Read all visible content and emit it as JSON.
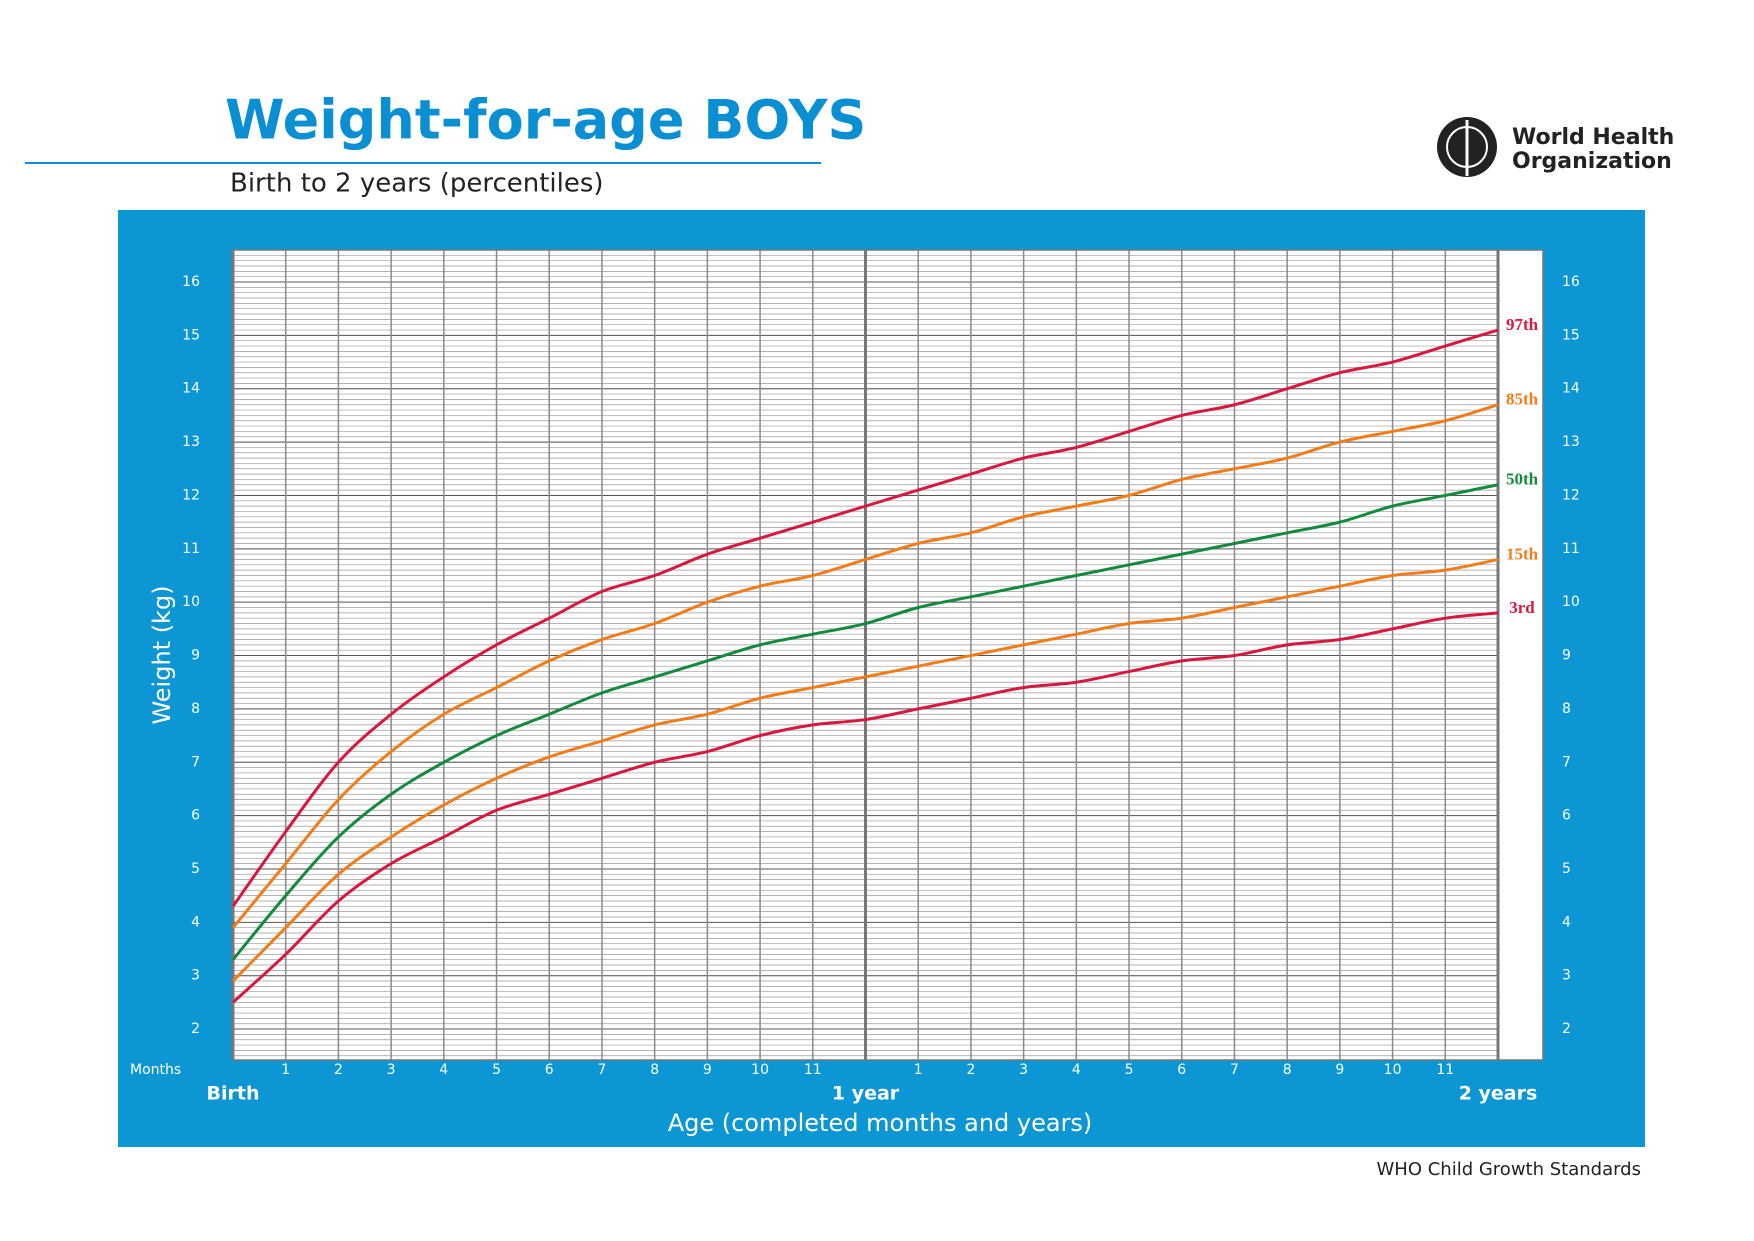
{
  "header": {
    "title": "Weight-for-age BOYS",
    "subtitle": "Birth to 2 years (percentiles)",
    "logo_lines": [
      "World Health",
      "Organization"
    ]
  },
  "footer": "WHO Child Growth Standards",
  "chart_data": {
    "type": "line",
    "ylabel": "Weight (kg)",
    "xlabel": "Age (completed months and years)",
    "x_unit_label": "Months",
    "x": [
      0,
      1,
      2,
      3,
      4,
      5,
      6,
      7,
      8,
      9,
      10,
      11,
      12,
      13,
      14,
      15,
      16,
      17,
      18,
      19,
      20,
      21,
      22,
      23,
      24
    ],
    "series": [
      {
        "name": "97th",
        "color": "#d7183f",
        "values": [
          4.3,
          5.7,
          7.0,
          7.9,
          8.6,
          9.2,
          9.7,
          10.2,
          10.5,
          10.9,
          11.2,
          11.5,
          11.8,
          12.1,
          12.4,
          12.7,
          12.9,
          13.2,
          13.5,
          13.7,
          14.0,
          14.3,
          14.5,
          14.8,
          15.1
        ]
      },
      {
        "name": "85th",
        "color": "#f07d1a",
        "values": [
          3.9,
          5.1,
          6.3,
          7.2,
          7.9,
          8.4,
          8.9,
          9.3,
          9.6,
          10.0,
          10.3,
          10.5,
          10.8,
          11.1,
          11.3,
          11.6,
          11.8,
          12.0,
          12.3,
          12.5,
          12.7,
          13.0,
          13.2,
          13.4,
          13.7
        ]
      },
      {
        "name": "50th",
        "color": "#138a3c",
        "values": [
          3.3,
          4.5,
          5.6,
          6.4,
          7.0,
          7.5,
          7.9,
          8.3,
          8.6,
          8.9,
          9.2,
          9.4,
          9.6,
          9.9,
          10.1,
          10.3,
          10.5,
          10.7,
          10.9,
          11.1,
          11.3,
          11.5,
          11.8,
          12.0,
          12.2
        ]
      },
      {
        "name": "15th",
        "color": "#f07d1a",
        "values": [
          2.9,
          3.9,
          4.9,
          5.6,
          6.2,
          6.7,
          7.1,
          7.4,
          7.7,
          7.9,
          8.2,
          8.4,
          8.6,
          8.8,
          9.0,
          9.2,
          9.4,
          9.6,
          9.7,
          9.9,
          10.1,
          10.3,
          10.5,
          10.6,
          10.8
        ]
      },
      {
        "name": "3rd",
        "color": "#d7183f",
        "values": [
          2.5,
          3.4,
          4.4,
          5.1,
          5.6,
          6.1,
          6.4,
          6.7,
          7.0,
          7.2,
          7.5,
          7.7,
          7.8,
          8.0,
          8.2,
          8.4,
          8.5,
          8.7,
          8.9,
          9.0,
          9.2,
          9.3,
          9.5,
          9.7,
          9.8
        ]
      }
    ],
    "xlim": [
      0,
      24
    ],
    "xticks": [
      {
        "value": 0,
        "label": "Birth"
      },
      1,
      2,
      3,
      4,
      5,
      6,
      7,
      8,
      9,
      10,
      11,
      {
        "value": 12,
        "label": "1 year"
      },
      {
        "value": 13,
        "label": "1"
      },
      {
        "value": 14,
        "label": "2"
      },
      {
        "value": 15,
        "label": "3"
      },
      {
        "value": 16,
        "label": "4"
      },
      {
        "value": 17,
        "label": "5"
      },
      {
        "value": 18,
        "label": "6"
      },
      {
        "value": 19,
        "label": "7"
      },
      {
        "value": 20,
        "label": "8"
      },
      {
        "value": 21,
        "label": "9"
      },
      {
        "value": 22,
        "label": "10"
      },
      {
        "value": 23,
        "label": "11"
      },
      {
        "value": 24,
        "label": "2 years"
      }
    ],
    "ylim": [
      1.42,
      16.6
    ],
    "yticks": [
      2,
      3,
      4,
      5,
      6,
      7,
      8,
      9,
      10,
      11,
      12,
      13,
      14,
      15,
      16
    ],
    "grid": true
  }
}
